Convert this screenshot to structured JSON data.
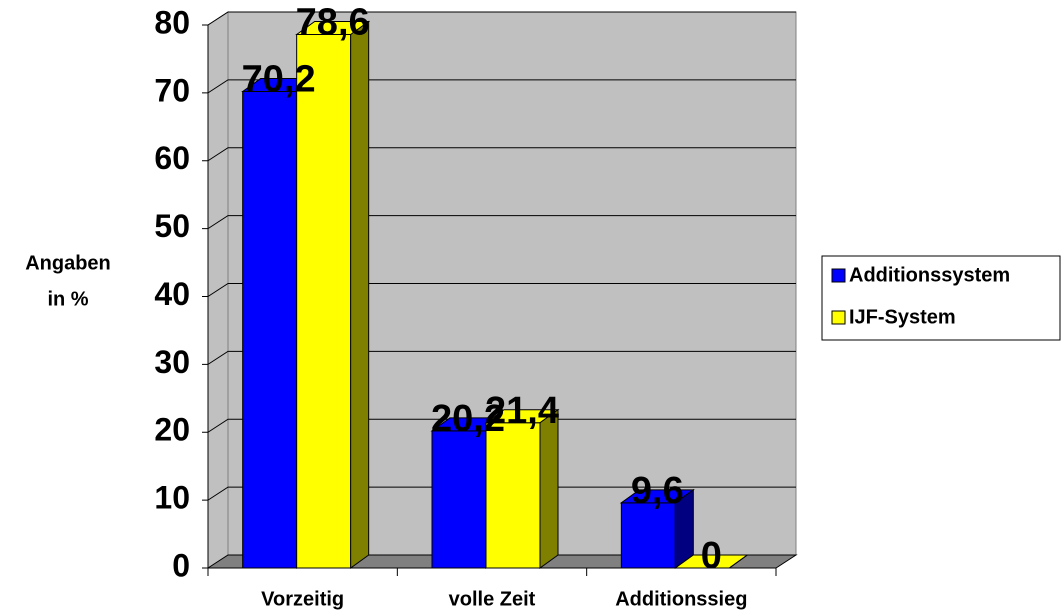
{
  "chart_data": {
    "type": "bar3d",
    "y_label": [
      "Angaben",
      "in %"
    ],
    "categories": [
      "Vorzeitig",
      "volle Zeit",
      "Additionssieg"
    ],
    "series": [
      {
        "name": "Additionssystem",
        "color": "#0000ff",
        "side_color": "#000080",
        "values": [
          70.2,
          20.2,
          9.6
        ],
        "value_labels": [
          "70,2",
          "20,2",
          "9,6"
        ]
      },
      {
        "name": "IJF-System",
        "color": "#ffff00",
        "side_color": "#808000",
        "values": [
          78.6,
          21.4,
          0
        ],
        "value_labels": [
          "78,6",
          "21,4",
          "0"
        ]
      }
    ],
    "ylim": [
      0,
      80
    ],
    "yticks": [
      0,
      10,
      20,
      30,
      40,
      50,
      60,
      70,
      80
    ],
    "grid": true,
    "legend": "right"
  }
}
